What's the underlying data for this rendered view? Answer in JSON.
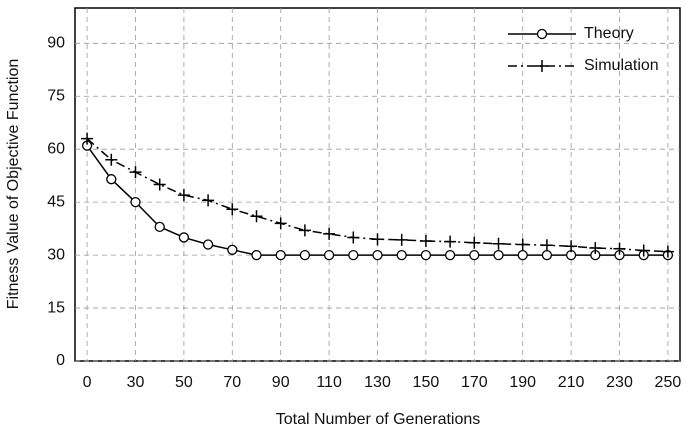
{
  "chart_data": {
    "type": "line",
    "x_label": "Total Number of  Generations",
    "y_label": "Fitness Value of Objective Function",
    "categories": [
      "0",
      null,
      "30",
      null,
      "50",
      null,
      "70",
      null,
      "90",
      null,
      "110",
      null,
      "130",
      null,
      "150",
      null,
      "170",
      null,
      "190",
      null,
      "210",
      null,
      "230",
      null,
      "250"
    ],
    "series": [
      {
        "name": "Theory",
        "color": "#000000",
        "values": [
          61,
          51.5,
          45,
          38,
          35,
          33,
          31.5,
          30,
          30,
          30,
          30,
          30,
          30,
          30,
          30,
          30,
          30,
          30,
          30,
          30,
          30,
          30,
          30,
          30,
          30
        ]
      },
      {
        "name": "Simulation",
        "color": "#000000",
        "values": [
          63,
          57,
          53.5,
          50,
          47,
          45.5,
          43,
          41,
          39,
          37,
          36,
          35,
          34.5,
          34.3,
          34,
          33.8,
          33.5,
          33.2,
          33,
          32.8,
          32.5,
          32,
          31.8,
          31.3,
          31
        ]
      }
    ],
    "ylim": [
      0,
      100
    ],
    "yticks": [
      0,
      15,
      30,
      45,
      60,
      75,
      90
    ],
    "grid": true,
    "legend": "upper-right"
  }
}
